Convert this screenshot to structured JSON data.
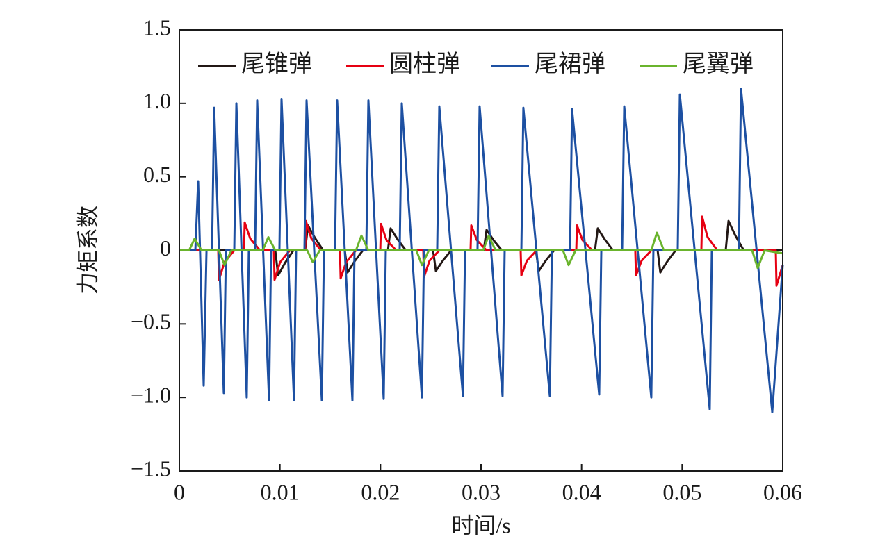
{
  "chart_data": {
    "type": "line",
    "xlabel": "时间/s",
    "ylabel": "力矩系数",
    "xlim": [
      0,
      0.06
    ],
    "ylim": [
      -1.5,
      1.5
    ],
    "xticks": [
      0,
      0.01,
      0.02,
      0.03,
      0.04,
      0.05,
      0.06
    ],
    "yticks": [
      {
        "value": -1.5,
        "label": "−1.5"
      },
      {
        "value": -1,
        "label": "−1.0"
      },
      {
        "value": -0.5,
        "label": "−0.5"
      },
      0,
      0.5,
      {
        "value": 1,
        "label": "1.0"
      },
      1.5
    ],
    "legend": "top",
    "series": [
      {
        "name": "尾锥弹",
        "color": "#231815",
        "x": [
          0,
          0.00954,
          0.00982,
          0.01051,
          0.01134,
          0.01251,
          0.01279,
          0.01348,
          0.01431,
          0.01645,
          0.01673,
          0.01742,
          0.01825,
          0.02074,
          0.02101,
          0.0217,
          0.02253,
          0.02523,
          0.02551,
          0.0262,
          0.02703,
          0.03027,
          0.03055,
          0.03124,
          0.03207,
          0.03546,
          0.03574,
          0.03643,
          0.03726,
          0.04133,
          0.04161,
          0.0423,
          0.04313,
          0.04756,
          0.04783,
          0.04852,
          0.04935,
          0.05433,
          0.05461,
          0.0553,
          0.05613,
          0.06
        ],
        "values": [
          0,
          0,
          -0.17,
          -0.085,
          0,
          0,
          0.17,
          0.085,
          0,
          0,
          -0.15,
          -0.075,
          0,
          0,
          0.15,
          0.075,
          0,
          0,
          -0.14,
          -0.07,
          0,
          0,
          0.14,
          0.07,
          0,
          0,
          -0.14,
          -0.07,
          0,
          0,
          0.15,
          0.075,
          0,
          0,
          -0.15,
          -0.075,
          0,
          0,
          0.2,
          0.1,
          0,
          0
        ]
      },
      {
        "name": "圆柱弹",
        "color": "#e60012",
        "x": [
          0,
          0.00387,
          0.00394,
          0.00449,
          0.00546,
          0.00643,
          0.0065,
          0.00705,
          0.00802,
          0.0094,
          0.00947,
          0.01002,
          0.01099,
          0.01251,
          0.01258,
          0.01313,
          0.0141,
          0.01597,
          0.01604,
          0.01659,
          0.01756,
          0.01998,
          0.02005,
          0.0206,
          0.02157,
          0.02426,
          0.02433,
          0.02488,
          0.02585,
          0.02896,
          0.02903,
          0.02958,
          0.03055,
          0.03394,
          0.03401,
          0.03456,
          0.03553,
          0.03947,
          0.03954,
          0.04009,
          0.04106,
          0.04534,
          0.04541,
          0.04597,
          0.04693,
          0.05191,
          0.05198,
          0.05253,
          0.0535,
          0.05931,
          0.05938,
          0.06
        ],
        "values": [
          0,
          0,
          -0.2,
          -0.08,
          0,
          0,
          0.19,
          0.08,
          0,
          0,
          -0.2,
          -0.08,
          0,
          0,
          0.2,
          0.08,
          0,
          0,
          -0.19,
          -0.08,
          0,
          0,
          0.18,
          0.07,
          0,
          0,
          -0.18,
          -0.07,
          0,
          0,
          0.17,
          0.07,
          0,
          0,
          -0.17,
          -0.07,
          0,
          0,
          0.17,
          0.07,
          0,
          0,
          -0.17,
          -0.07,
          0,
          0,
          0.23,
          0.09,
          0,
          0,
          -0.24,
          -0.1
        ]
      },
      {
        "name": "尾裙弹",
        "color": "#1d50a2",
        "x": [
          0,
          0.00159,
          0.00187,
          0.00242,
          0.0027,
          0.00325,
          0.00346,
          0.00442,
          0.00463,
          0.00546,
          0.00567,
          0.0067,
          0.00691,
          0.00753,
          0.00774,
          0.00892,
          0.00912,
          0.00995,
          0.01016,
          0.0114,
          0.01161,
          0.01244,
          0.01265,
          0.01417,
          0.01438,
          0.01548,
          0.01569,
          0.01721,
          0.01742,
          0.01859,
          0.0188,
          0.02032,
          0.02053,
          0.02191,
          0.02212,
          0.02412,
          0.02433,
          0.02564,
          0.02585,
          0.0282,
          0.02841,
          0.02965,
          0.02986,
          0.03214,
          0.03235,
          0.03401,
          0.03421,
          0.03684,
          0.03705,
          0.03885,
          0.03905,
          0.04175,
          0.04196,
          0.04403,
          0.04424,
          0.04693,
          0.04714,
          0.04956,
          0.04977,
          0.05274,
          0.05295,
          0.05564,
          0.05585,
          0.05896,
          0.06
        ],
        "values": [
          0,
          0,
          0.47,
          -0.92,
          0,
          0,
          0.97,
          -0.97,
          0,
          0,
          1.0,
          -1.0,
          0,
          0,
          1.02,
          -1.02,
          0,
          0,
          1.03,
          -1.02,
          0,
          0,
          1.02,
          -1.02,
          0,
          0,
          1.02,
          -1.02,
          0,
          0,
          1.02,
          -1.01,
          0,
          0,
          1.0,
          -1.0,
          0,
          0,
          0.98,
          -0.99,
          0,
          0,
          0.98,
          -0.99,
          0,
          0,
          0.97,
          -0.99,
          0,
          0,
          0.96,
          -0.98,
          0,
          0,
          0.98,
          -1.0,
          0,
          0,
          1.06,
          -1.08,
          0,
          0,
          1.1,
          -1.1,
          -0.1
        ]
      },
      {
        "name": "尾翼弹",
        "color": "#6ab42d",
        "x": [
          0,
          0.00097,
          0.00152,
          0.00221,
          0.00394,
          0.00449,
          0.00518,
          0.00829,
          0.00885,
          0.00954,
          0.01272,
          0.01327,
          0.01396,
          0.01756,
          0.01811,
          0.0188,
          0.02357,
          0.02412,
          0.02481,
          0.03021,
          0.03076,
          0.03145,
          0.03815,
          0.03871,
          0.0394,
          0.04693,
          0.04749,
          0.04818,
          0.05696,
          0.05751,
          0.0582,
          0.06
        ],
        "values": [
          0,
          0,
          0.08,
          0,
          0,
          -0.1,
          0,
          0,
          0.09,
          0,
          0,
          -0.08,
          0,
          0,
          0.1,
          0,
          0,
          -0.1,
          0,
          0,
          0.1,
          0,
          0,
          -0.1,
          0,
          0,
          0.12,
          0,
          0,
          -0.12,
          0,
          -0.02
        ]
      }
    ]
  }
}
